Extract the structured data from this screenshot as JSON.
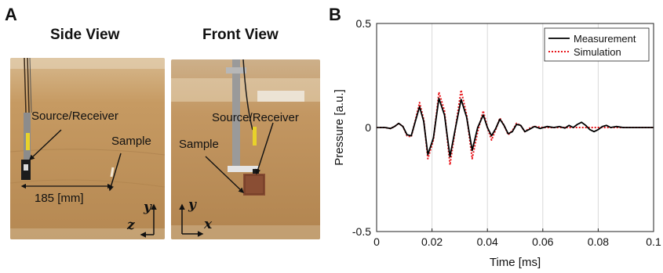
{
  "figure": {
    "panel_a_letter": "A",
    "panel_b_letter": "B",
    "side_view": {
      "title": "Side View",
      "label_source_receiver": "Source/Receiver",
      "label_sample": "Sample",
      "label_distance": "185 [mm]",
      "axis_vertical": "y",
      "axis_horizontal": "z"
    },
    "front_view": {
      "title": "Front View",
      "label_source_receiver": "Source/Receiver",
      "label_sample": "Sample",
      "axis_vertical": "y",
      "axis_horizontal": "x"
    }
  },
  "chart_data": {
    "type": "line",
    "xlabel": "Time [ms]",
    "ylabel": "Pressure [a.u.]",
    "xlim": [
      0,
      0.1
    ],
    "ylim": [
      -0.5,
      0.5
    ],
    "xticks": [
      0,
      0.02,
      0.04,
      0.06,
      0.08,
      0.1
    ],
    "xtick_labels": [
      "0",
      "0.02",
      "0.04",
      "0.06",
      "0.08",
      "0.1"
    ],
    "yticks": [
      -0.5,
      0,
      0.5
    ],
    "ytick_labels": [
      "-0.5",
      "0",
      "0.5"
    ],
    "grid": "vertical",
    "legend_position": "top-right",
    "series": [
      {
        "name": "Measurement",
        "color": "#000000",
        "style": "solid",
        "x": [
          0,
          0.003,
          0.005,
          0.0065,
          0.008,
          0.0095,
          0.011,
          0.0125,
          0.014,
          0.0155,
          0.017,
          0.0185,
          0.0205,
          0.0225,
          0.0245,
          0.0265,
          0.0285,
          0.0305,
          0.0325,
          0.0345,
          0.0365,
          0.0385,
          0.04,
          0.0415,
          0.043,
          0.0445,
          0.046,
          0.0475,
          0.049,
          0.0505,
          0.052,
          0.0535,
          0.055,
          0.057,
          0.059,
          0.0615,
          0.064,
          0.066,
          0.068,
          0.0695,
          0.071,
          0.0725,
          0.074,
          0.0755,
          0.077,
          0.0785,
          0.08,
          0.0815,
          0.083,
          0.0845,
          0.0865,
          0.089,
          0.095,
          0.1
        ],
        "y": [
          0,
          0.0,
          -0.005,
          0.005,
          0.02,
          0.005,
          -0.035,
          -0.04,
          0.03,
          0.1,
          0.03,
          -0.13,
          -0.05,
          0.14,
          0.06,
          -0.14,
          0.0,
          0.135,
          0.05,
          -0.11,
          0.0,
          0.06,
          0.0,
          -0.04,
          -0.005,
          0.04,
          0.01,
          -0.03,
          -0.02,
          0.015,
          0.01,
          -0.02,
          -0.01,
          0.005,
          -0.005,
          0.005,
          0.0,
          0.005,
          -0.003,
          0.01,
          0.0,
          0.015,
          0.025,
          0.01,
          -0.01,
          -0.02,
          -0.01,
          0.005,
          0.01,
          0.0,
          0.005,
          0.0,
          0.0,
          0.0
        ]
      },
      {
        "name": "Simulation",
        "color": "#e8161b",
        "style": "dotted",
        "x": [
          0,
          0.003,
          0.005,
          0.0065,
          0.008,
          0.0095,
          0.011,
          0.0125,
          0.014,
          0.0155,
          0.017,
          0.0185,
          0.0205,
          0.0225,
          0.0245,
          0.0265,
          0.0285,
          0.0305,
          0.0325,
          0.0345,
          0.0365,
          0.0385,
          0.04,
          0.0415,
          0.043,
          0.0445,
          0.046,
          0.0475,
          0.049,
          0.0505,
          0.052,
          0.0535,
          0.055,
          0.057,
          0.06,
          0.065,
          0.07,
          0.08,
          0.09,
          0.1
        ],
        "y": [
          0,
          0.0,
          -0.005,
          0.005,
          0.02,
          0.005,
          -0.04,
          -0.045,
          0.035,
          0.12,
          0.04,
          -0.15,
          -0.06,
          0.17,
          0.08,
          -0.18,
          0.0,
          0.18,
          0.06,
          -0.15,
          -0.02,
          0.08,
          0.0,
          -0.06,
          -0.01,
          0.045,
          0.01,
          -0.035,
          -0.015,
          0.02,
          0.01,
          -0.02,
          -0.005,
          0.005,
          0.0,
          0.0,
          0.0,
          0.0,
          0.0,
          0.0
        ]
      }
    ]
  }
}
